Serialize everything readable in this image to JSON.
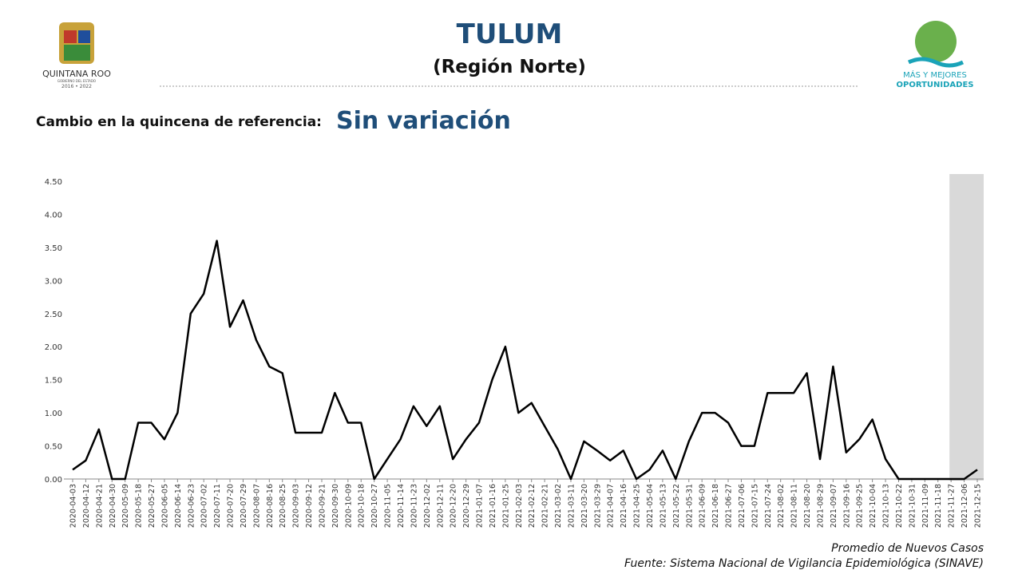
{
  "header": {
    "logo_left": [
      "QUINTANA ROO",
      "GOBIERNO DEL ESTADO",
      "2016 • 2022"
    ],
    "logo_right": [
      "MÁS Y MEJORES",
      "OPORTUNIDADES"
    ],
    "subtitle_label": "Cambio en la quincena de referencia:",
    "subtitle_value": "Sin variación"
  },
  "chart_data": {
    "type": "line",
    "title": "TULUM",
    "subtitle": "(Región Norte)",
    "categories": [
      "2020-04-03",
      "2020-04-12",
      "2020-04-21",
      "2020-04-30",
      "2020-05-09",
      "2020-05-18",
      "2020-05-27",
      "2020-06-05",
      "2020-06-14",
      "2020-06-23",
      "2020-07-02",
      "2020-07-11",
      "2020-07-20",
      "2020-07-29",
      "2020-08-07",
      "2020-08-16",
      "2020-08-25",
      "2020-09-03",
      "2020-09-12",
      "2020-09-21",
      "2020-09-30",
      "2020-10-09",
      "2020-10-18",
      "2020-10-27",
      "2020-11-05",
      "2020-11-14",
      "2020-11-23",
      "2020-12-02",
      "2020-12-11",
      "2020-12-20",
      "2020-12-29",
      "2021-01-07",
      "2021-01-16",
      "2021-01-25",
      "2021-02-03",
      "2021-02-12",
      "2021-02-21",
      "2021-03-02",
      "2021-03-11",
      "2021-03-20",
      "2021-03-29",
      "2021-04-07",
      "2021-04-16",
      "2021-04-25",
      "2021-05-04",
      "2021-05-13",
      "2021-05-22",
      "2021-05-31",
      "2021-06-09",
      "2021-06-18",
      "2021-06-27",
      "2021-07-06",
      "2021-07-15",
      "2021-07-24",
      "2021-08-02",
      "2021-08-11",
      "2021-08-20",
      "2021-08-29",
      "2021-09-07",
      "2021-09-16",
      "2021-09-25",
      "2021-10-04",
      "2021-10-13",
      "2021-10-22",
      "2021-10-31",
      "2021-11-09",
      "2021-11-18",
      "2021-11-27",
      "2021-12-06",
      "2021-12-15"
    ],
    "series": [
      {
        "name": "Promedio de Nuevos Casos",
        "color": "#000000",
        "values": [
          0.14,
          0.28,
          0.75,
          0,
          0,
          0.85,
          0.85,
          0.6,
          1,
          2.5,
          2.8,
          3.6,
          2.3,
          2.7,
          2.1,
          1.7,
          1.6,
          0.7,
          0.7,
          0.7,
          1.3,
          0.85,
          0.85,
          0,
          0.3,
          0.6,
          1.1,
          0.8,
          1.1,
          0.3,
          0.6,
          0.85,
          1.5,
          2,
          1,
          1.15,
          0.8,
          0.45,
          0,
          0.57,
          0.43,
          0.28,
          0.43,
          0,
          0.14,
          0.43,
          0,
          0.57,
          1,
          1,
          0.85,
          0.5,
          0.5,
          1.3,
          1.3,
          1.3,
          1.6,
          0.3,
          1.7,
          0.4,
          0.6,
          0.9,
          0.3,
          0,
          0,
          0,
          0,
          0,
          0,
          0.14
        ]
      }
    ],
    "ylim": [
      0,
      4.5
    ],
    "yticks": [
      {
        "value": 0,
        "label": "0.00"
      },
      {
        "value": 0.5,
        "label": "0.50"
      },
      {
        "value": 1,
        "label": "1.00"
      },
      {
        "value": 1.5,
        "label": "1.50"
      },
      {
        "value": 2,
        "label": "2.00"
      },
      {
        "value": 2.5,
        "label": "2.50"
      },
      {
        "value": 3,
        "label": "3.00"
      },
      {
        "value": 3.5,
        "label": "3.50"
      },
      {
        "value": 4,
        "label": "4.00"
      },
      {
        "value": 4.5,
        "label": "4.50"
      }
    ],
    "grid": false,
    "highlight": {
      "from": "2021-11-27",
      "color": "#d9d9d9"
    },
    "source": "Fuente: Sistema Nacional de Vigilancia Epidemiológica (SINAVE)"
  }
}
